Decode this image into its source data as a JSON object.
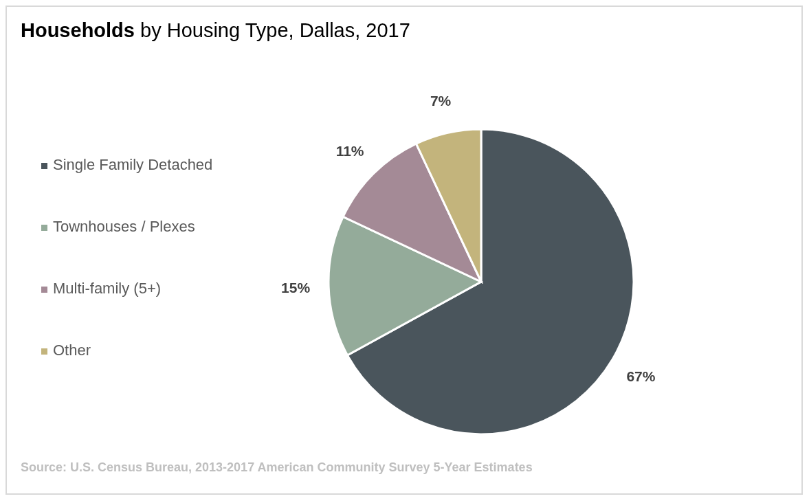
{
  "chart_data": {
    "type": "pie",
    "title": "Households by Housing Type, Dallas, 2017",
    "categories": [
      "Single Family Detached",
      "Townhouses / Plexes",
      "Multi-family (5+)",
      "Other"
    ],
    "values": [
      67,
      15,
      11,
      7
    ],
    "colors": [
      "#4a555c",
      "#94ab9a",
      "#a48a96",
      "#c3b47c"
    ],
    "legend": "left",
    "value_labels": [
      "67%",
      "15%",
      "11%",
      "7%"
    ],
    "annotations": [
      "Source: U.S. Census Bureau, 2013-2017 American Community Survey 5-Year Estimates"
    ]
  }
}
